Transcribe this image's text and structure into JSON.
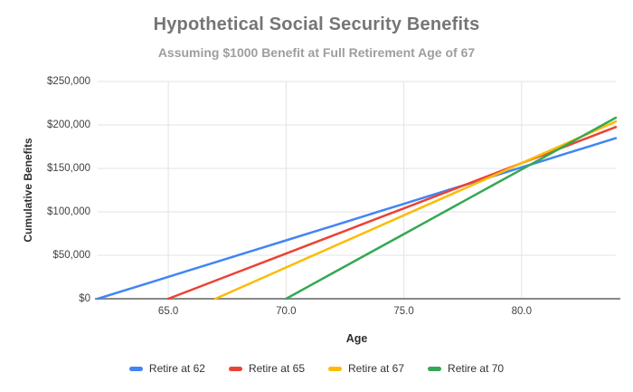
{
  "chart_data": {
    "type": "line",
    "title": "Hypothetical Social Security Benefits",
    "subtitle": "Assuming $1000 Benefit at Full Retirement Age of 67",
    "xlabel": "Age",
    "ylabel": "Cumulative Benefits",
    "xlim": [
      62,
      84
    ],
    "ylim": [
      0,
      250000
    ],
    "grid": true,
    "legend_position": "bottom",
    "x_ticks": [
      65,
      70,
      75,
      80
    ],
    "x_tick_labels": [
      "65.0",
      "70.0",
      "75.0",
      "80.0"
    ],
    "y_ticks": [
      0,
      50000,
      100000,
      150000,
      200000,
      250000
    ],
    "y_tick_labels": [
      "$0",
      "$50,000",
      "$100,000",
      "$150,000",
      "$200,000",
      "$250,000"
    ],
    "colors": {
      "grid": "#e3e3e3",
      "baseline": "#888888"
    },
    "series": [
      {
        "name": "Retire at 62",
        "color": "#4285F4",
        "points": [
          [
            62,
            0
          ],
          [
            63,
            8400
          ],
          [
            64,
            16800
          ],
          [
            65,
            25200
          ],
          [
            66,
            33600
          ],
          [
            67,
            42000
          ],
          [
            68,
            50400
          ],
          [
            69,
            58800
          ],
          [
            70,
            67200
          ],
          [
            71,
            75600
          ],
          [
            72,
            84000
          ],
          [
            73,
            92400
          ],
          [
            74,
            100800
          ],
          [
            75,
            109200
          ],
          [
            76,
            117600
          ],
          [
            77,
            126000
          ],
          [
            78,
            134400
          ],
          [
            79,
            142800
          ],
          [
            80,
            151200
          ],
          [
            81,
            159600
          ],
          [
            82,
            168000
          ],
          [
            83,
            176400
          ],
          [
            84,
            184800
          ]
        ]
      },
      {
        "name": "Retire at 65",
        "color": "#EA4335",
        "points": [
          [
            65,
            0
          ],
          [
            66,
            10400
          ],
          [
            67,
            20800
          ],
          [
            68,
            31200
          ],
          [
            69,
            41600
          ],
          [
            70,
            52000
          ],
          [
            71,
            62400
          ],
          [
            72,
            72800
          ],
          [
            73,
            83200
          ],
          [
            74,
            93600
          ],
          [
            75,
            104000
          ],
          [
            76,
            114400
          ],
          [
            77,
            124800
          ],
          [
            78,
            135200
          ],
          [
            79,
            145600
          ],
          [
            80,
            156000
          ],
          [
            81,
            166400
          ],
          [
            82,
            176800
          ],
          [
            83,
            187200
          ],
          [
            84,
            197600
          ]
        ]
      },
      {
        "name": "Retire at 67",
        "color": "#FBBC04",
        "points": [
          [
            67,
            0
          ],
          [
            68,
            12000
          ],
          [
            69,
            24000
          ],
          [
            70,
            36000
          ],
          [
            71,
            48000
          ],
          [
            72,
            60000
          ],
          [
            73,
            72000
          ],
          [
            74,
            84000
          ],
          [
            75,
            96000
          ],
          [
            76,
            108000
          ],
          [
            77,
            120000
          ],
          [
            78,
            132000
          ],
          [
            79,
            144000
          ],
          [
            80,
            156000
          ],
          [
            81,
            168000
          ],
          [
            82,
            180000
          ],
          [
            83,
            192000
          ],
          [
            84,
            204000
          ]
        ]
      },
      {
        "name": "Retire at 70",
        "color": "#34A853",
        "points": [
          [
            70,
            0
          ],
          [
            71,
            14880
          ],
          [
            72,
            29760
          ],
          [
            73,
            44640
          ],
          [
            74,
            59520
          ],
          [
            75,
            74400
          ],
          [
            76,
            89280
          ],
          [
            77,
            104160
          ],
          [
            78,
            119040
          ],
          [
            79,
            133920
          ],
          [
            80,
            148800
          ],
          [
            81,
            163680
          ],
          [
            82,
            178560
          ],
          [
            83,
            193440
          ],
          [
            84,
            208320
          ]
        ]
      }
    ]
  }
}
